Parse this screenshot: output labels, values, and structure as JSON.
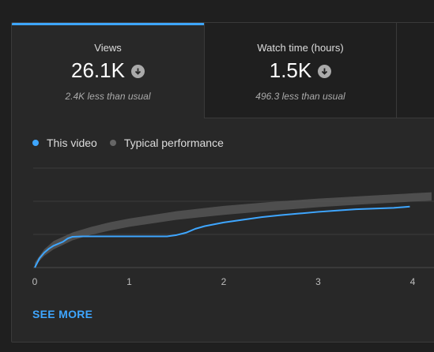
{
  "tabs": [
    {
      "label": "Views",
      "value": "26.1K",
      "sub": "2.4K less than usual",
      "icon": "arrow-down-icon"
    },
    {
      "label": "Watch time (hours)",
      "value": "1.5K",
      "sub": "496.3 less than usual",
      "icon": "arrow-down-icon"
    }
  ],
  "legend": {
    "this_video": "This video",
    "typical": "Typical performance"
  },
  "colors": {
    "accent": "#3ea6ff",
    "this_video": "#3ea6ff",
    "typical": "#555555",
    "grid": "#3d3d3d"
  },
  "chart_data": {
    "type": "line",
    "x_ticks": [
      "0",
      "1",
      "2",
      "3",
      "4"
    ],
    "xlim": [
      0,
      4.2
    ],
    "ylim": [
      0,
      3
    ],
    "grid": "horizontal",
    "series": [
      {
        "name": "This video",
        "x": [
          0,
          0.05,
          0.1,
          0.15,
          0.2,
          0.3,
          0.35,
          0.4,
          0.5,
          1.0,
          1.4,
          1.5,
          1.6,
          1.7,
          1.8,
          2.0,
          2.2,
          2.4,
          2.6,
          2.8,
          3.0,
          3.2,
          3.4,
          3.6,
          3.8,
          3.97
        ],
        "values": [
          0,
          0.28,
          0.45,
          0.57,
          0.66,
          0.78,
          0.88,
          0.93,
          0.94,
          0.94,
          0.94,
          0.98,
          1.05,
          1.17,
          1.25,
          1.36,
          1.44,
          1.52,
          1.58,
          1.63,
          1.68,
          1.72,
          1.76,
          1.78,
          1.8,
          1.84
        ]
      },
      {
        "name": "Typical performance",
        "x": [
          0,
          0.1,
          0.2,
          0.4,
          0.6,
          0.8,
          1.0,
          1.5,
          2.0,
          2.5,
          3.0,
          3.5,
          4.0,
          4.2
        ],
        "upper": [
          0.15,
          0.55,
          0.8,
          1.06,
          1.23,
          1.37,
          1.48,
          1.7,
          1.86,
          1.98,
          2.08,
          2.16,
          2.24,
          2.27
        ],
        "lower": [
          0.05,
          0.35,
          0.55,
          0.82,
          0.99,
          1.12,
          1.23,
          1.44,
          1.59,
          1.71,
          1.82,
          1.91,
          1.99,
          2.02
        ]
      }
    ]
  },
  "see_more": "SEE MORE"
}
